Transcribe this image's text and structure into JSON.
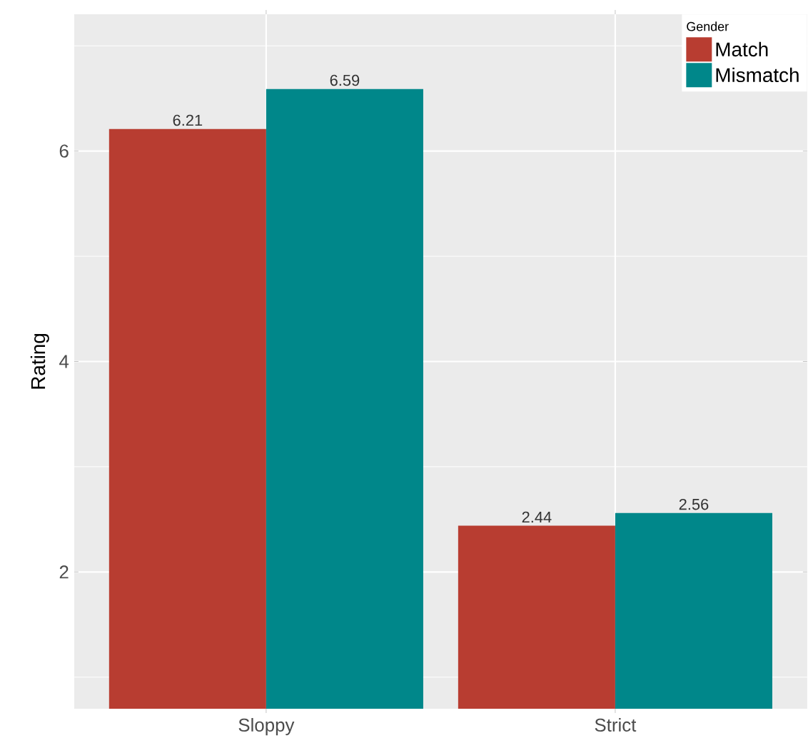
{
  "chart_data": {
    "type": "bar",
    "ylabel": "Rating",
    "legend_title": "Gender",
    "categories": [
      "Sloppy",
      "Strict"
    ],
    "series": [
      {
        "name": "Match",
        "color": "#b83d31",
        "values": [
          6.21,
          2.44
        ]
      },
      {
        "name": "Mismatch",
        "color": "#00878a",
        "values": [
          6.59,
          2.56
        ]
      }
    ],
    "ylim": [
      0.7,
      7.3
    ],
    "yticks": [
      {
        "value": 1,
        "label": null
      },
      2,
      {
        "value": 3,
        "label": null
      },
      4,
      {
        "value": 5,
        "label": null
      },
      6,
      {
        "value": 7,
        "label": null
      }
    ],
    "grid": true,
    "legend": "top right",
    "data_labels": true
  }
}
